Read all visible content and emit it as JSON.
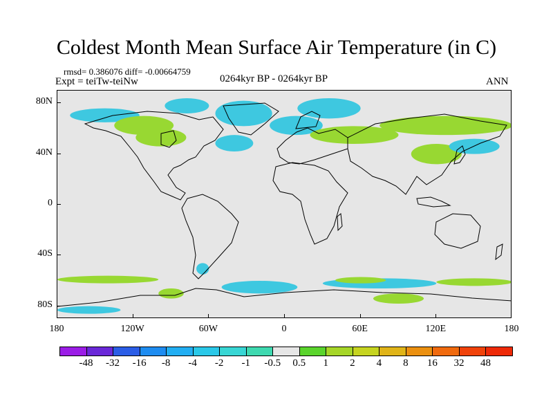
{
  "title": "Coldest Month Mean Surface Air Temperature (in C)",
  "stats": "rmsd= 0.386076 diff= -0.00664759",
  "experiment": "Expt = teiTw-teiNw",
  "period": "0264kyr BP - 0264kyr BP",
  "season": "ANN",
  "map": {
    "background_color": "#e6e6e6",
    "lat_labels": [
      "80N",
      "40N",
      "0",
      "40S",
      "80S"
    ],
    "lat_values": [
      80,
      40,
      0,
      -40,
      -80
    ],
    "lon_labels": [
      "180",
      "120W",
      "60W",
      "0",
      "60E",
      "120E",
      "180"
    ],
    "lon_values": [
      -180,
      -120,
      -60,
      0,
      60,
      120,
      180
    ],
    "lat_range": [
      -90,
      90
    ],
    "lon_range": [
      -180,
      180
    ],
    "anomaly_regions": [
      {
        "lon": [
          -170,
          -115
        ],
        "lat": [
          65,
          76
        ],
        "color": "#3ec8e0"
      },
      {
        "lon": [
          -135,
          -88
        ],
        "lat": [
          55,
          70
        ],
        "color": "#98d832"
      },
      {
        "lon": [
          -118,
          -78
        ],
        "lat": [
          46,
          60
        ],
        "color": "#98d832"
      },
      {
        "lon": [
          -95,
          -60
        ],
        "lat": [
          72,
          84
        ],
        "color": "#3ec8e0"
      },
      {
        "lon": [
          -55,
          -10
        ],
        "lat": [
          62,
          82
        ],
        "color": "#3ec8e0"
      },
      {
        "lon": [
          -55,
          -25
        ],
        "lat": [
          42,
          55
        ],
        "color": "#3ec8e0"
      },
      {
        "lon": [
          -12,
          30
        ],
        "lat": [
          55,
          70
        ],
        "color": "#3ec8e0"
      },
      {
        "lon": [
          10,
          60
        ],
        "lat": [
          68,
          84
        ],
        "color": "#3ec8e0"
      },
      {
        "lon": [
          20,
          90
        ],
        "lat": [
          48,
          62
        ],
        "color": "#98d832"
      },
      {
        "lon": [
          75,
          180
        ],
        "lat": [
          55,
          70
        ],
        "color": "#98d832"
      },
      {
        "lon": [
          100,
          140
        ],
        "lat": [
          32,
          48
        ],
        "color": "#98d832"
      },
      {
        "lon": [
          130,
          170
        ],
        "lat": [
          40,
          52
        ],
        "color": "#3ec8e0"
      },
      {
        "lon": [
          -70,
          -60
        ],
        "lat": [
          -55,
          -46
        ],
        "color": "#3ec8e0"
      },
      {
        "lon": [
          -180,
          -100
        ],
        "lat": [
          -62,
          -56
        ],
        "color": "#98d832"
      },
      {
        "lon": [
          -100,
          -80
        ],
        "lat": [
          -74,
          -66
        ],
        "color": "#98d832"
      },
      {
        "lon": [
          -50,
          10
        ],
        "lat": [
          -70,
          -60
        ],
        "color": "#3ec8e0"
      },
      {
        "lon": [
          30,
          120
        ],
        "lat": [
          -66,
          -58
        ],
        "color": "#3ec8e0"
      },
      {
        "lon": [
          40,
          80
        ],
        "lat": [
          -62,
          -57
        ],
        "color": "#98d832"
      },
      {
        "lon": [
          120,
          180
        ],
        "lat": [
          -64,
          -58
        ],
        "color": "#98d832"
      },
      {
        "lon": [
          70,
          110
        ],
        "lat": [
          -78,
          -70
        ],
        "color": "#98d832"
      },
      {
        "lon": [
          -180,
          -130
        ],
        "lat": [
          -86,
          -80
        ],
        "color": "#3ec8e0"
      }
    ]
  },
  "colorbar": {
    "labels": [
      "-48",
      "-32",
      "-16",
      "-8",
      "-4",
      "-2",
      "-1",
      "-0.5",
      "0.5",
      "1",
      "2",
      "4",
      "8",
      "16",
      "32",
      "48"
    ],
    "colors": [
      "#9b1de6",
      "#6a28d8",
      "#2b5de6",
      "#1e8cf0",
      "#22aef2",
      "#2ac8e8",
      "#38d6d4",
      "#3ed9b0",
      "#e6e6e6",
      "#5ad42c",
      "#a6d628",
      "#c6d420",
      "#e0b418",
      "#eb9010",
      "#f06a0e",
      "#f0420a",
      "#ee2a08"
    ]
  }
}
